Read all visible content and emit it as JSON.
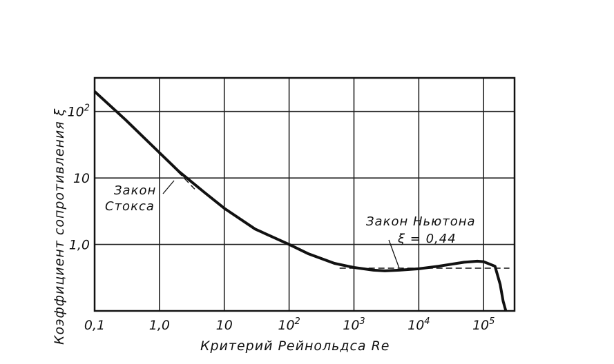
{
  "chart_data": {
    "type": "line",
    "x_scale": "log",
    "y_scale": "log",
    "xlim": [
      0.1,
      300000
    ],
    "ylim": [
      0.1,
      320
    ],
    "grid": true,
    "xlabel": "Критерий  Рейнольдса Re",
    "ylabel": "Коэффициент сопротивления ξ",
    "x_ticks": [
      {
        "value": 0.1,
        "label": "0,1"
      },
      {
        "value": 1,
        "label": "1,0"
      },
      {
        "value": 10,
        "label": "10"
      },
      {
        "value": 100,
        "label": "10",
        "sup": "2"
      },
      {
        "value": 1000,
        "label": "10",
        "sup": "3"
      },
      {
        "value": 10000,
        "label": "10",
        "sup": "4"
      },
      {
        "value": 100000,
        "label": "10",
        "sup": "5"
      }
    ],
    "y_ticks": [
      {
        "value": 1,
        "label": "1,0"
      },
      {
        "value": 10,
        "label": "10"
      },
      {
        "value": 100,
        "label": "10",
        "sup": "2"
      }
    ],
    "series": [
      {
        "style": "solid",
        "x": [
          0.1,
          0.3,
          1,
          2,
          5,
          10,
          30,
          100,
          200,
          500,
          1000,
          2000,
          3000,
          5000,
          10000,
          20000,
          50000,
          80000,
          100000,
          150000,
          180000,
          200000,
          220000
        ],
        "y": [
          200,
          75,
          24,
          12.5,
          6,
          3.5,
          1.7,
          1.0,
          0.72,
          0.52,
          0.45,
          0.41,
          0.4,
          0.41,
          0.43,
          0.47,
          0.54,
          0.56,
          0.55,
          0.47,
          0.25,
          0.14,
          0.1
        ]
      },
      {
        "style": "dashed",
        "x": [
          1.5,
          3.5
        ],
        "y": [
          16,
          6.8
        ]
      },
      {
        "style": "dashed",
        "x": [
          600,
          250000
        ],
        "y": [
          0.44,
          0.44
        ]
      }
    ],
    "annotations": [
      {
        "lines": [
          "Закон",
          "Стокса"
        ]
      },
      {
        "lines": [
          "Закон  Ньютона",
          "ξ = 0,44"
        ]
      }
    ]
  }
}
